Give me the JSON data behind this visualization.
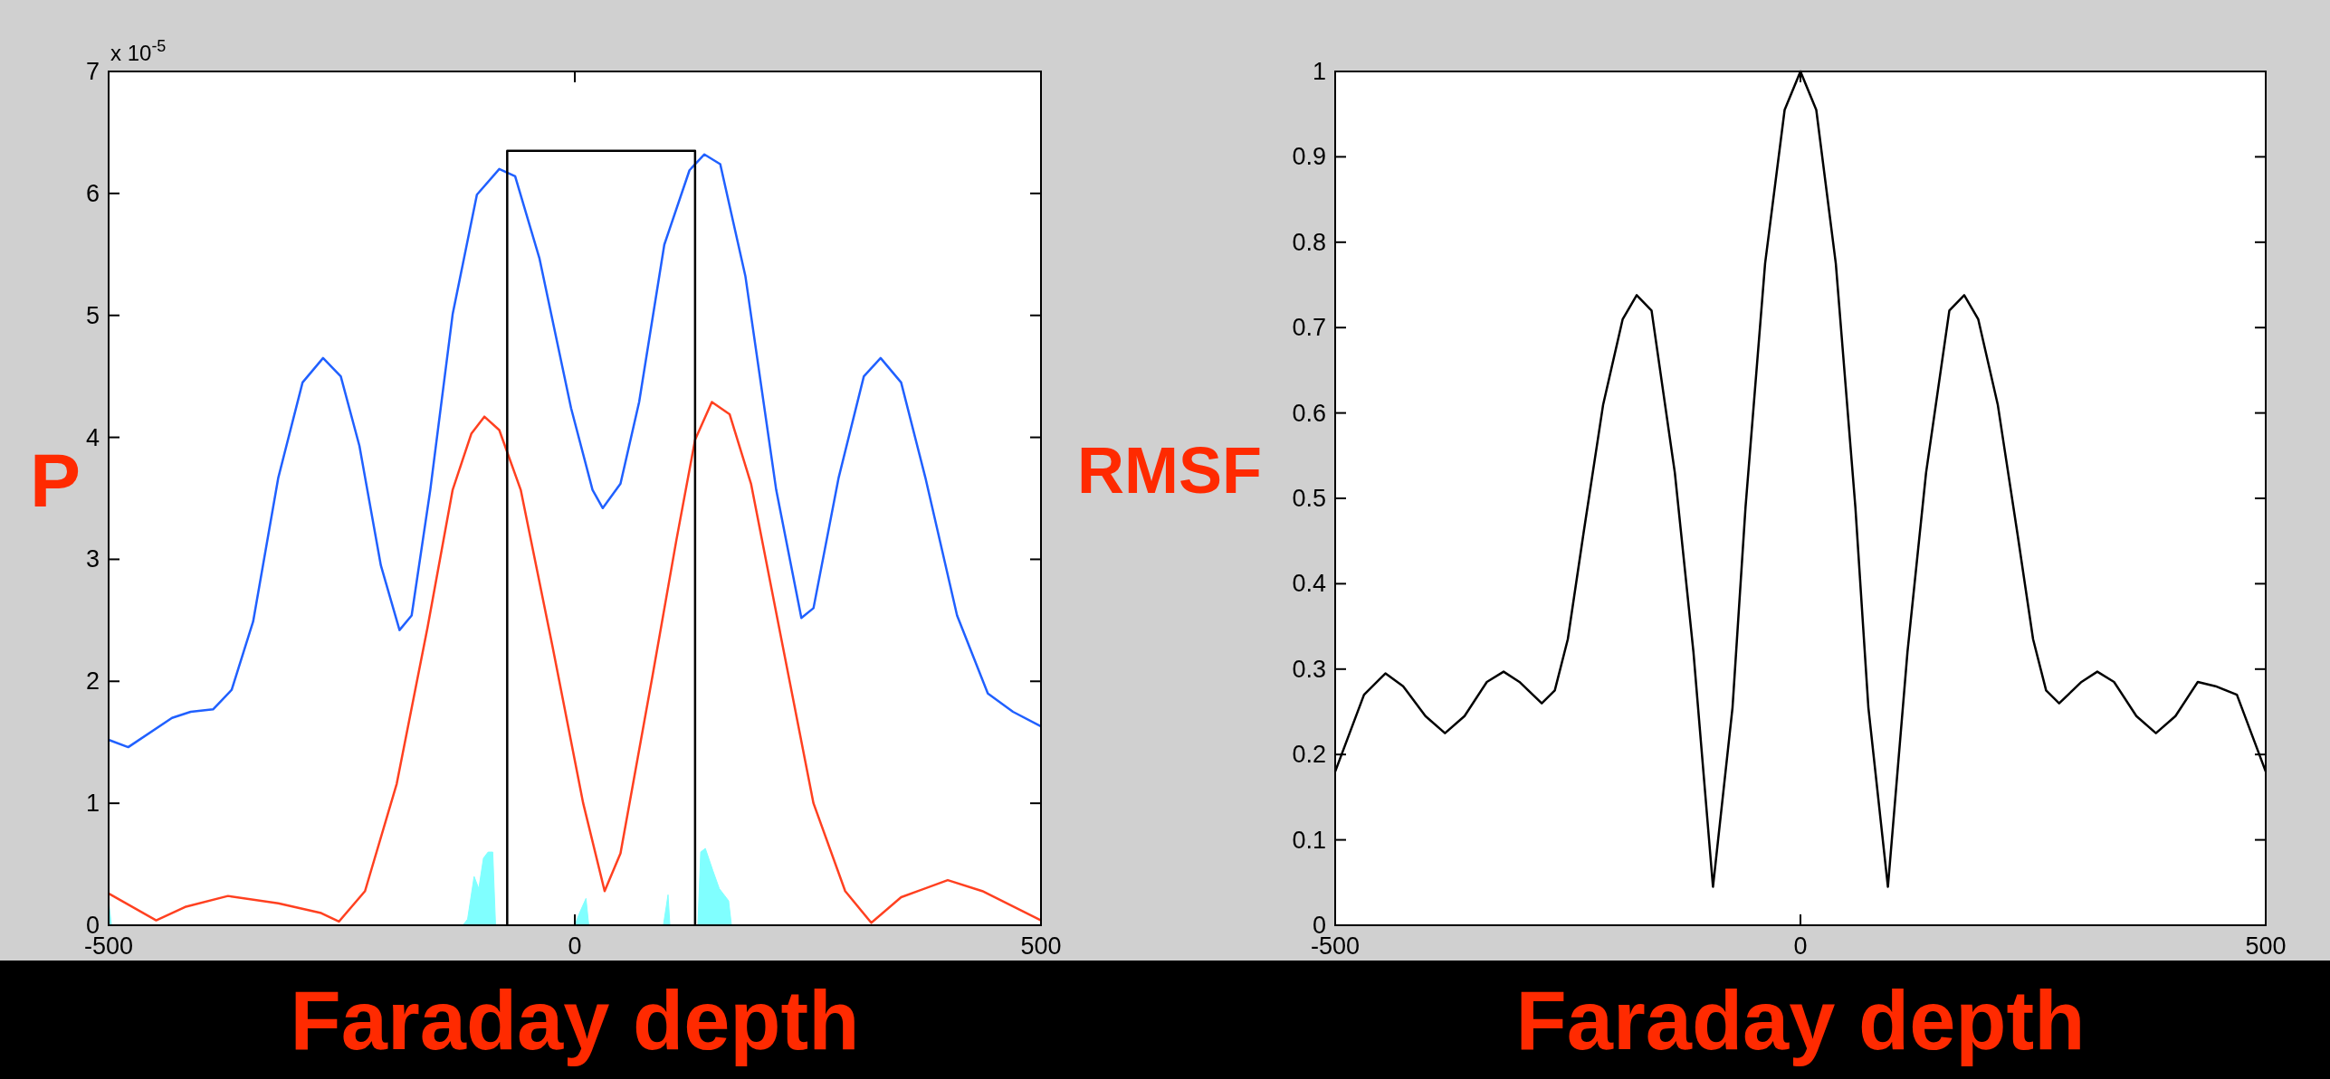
{
  "chart_data": [
    {
      "type": "line",
      "ylabel": "P",
      "xlabel": "Faraday depth",
      "annotations": [
        "x 10$^{-5}$"
      ],
      "xlim": [
        -500,
        500
      ],
      "xticks": [
        -500,
        0,
        500
      ],
      "ylim": [
        0,
        7
      ],
      "yticks": [
        0,
        1,
        2,
        3,
        4,
        5,
        6,
        7
      ],
      "grid": false,
      "series": [
        {
          "type": "area",
          "color": "#80ffff",
          "x": [
            -500,
            -497,
            -120,
            -115,
            -108,
            -103,
            -98,
            -93,
            -88,
            -85,
            0,
            5,
            12,
            15,
            95,
            100,
            102,
            132,
            135,
            140,
            148,
            155,
            165,
            168,
            500
          ],
          "values": [
            0.2,
            0,
            0,
            0.05,
            0.4,
            0.3,
            0.55,
            0.6,
            0.6,
            0,
            0,
            0.1,
            0.22,
            0,
            0,
            0.25,
            0,
            0,
            0.6,
            0.63,
            0.45,
            0.3,
            0.2,
            0,
            0
          ]
        },
        {
          "color": "#ff4020",
          "x": [
            -500,
            -449,
            -418,
            -372,
            -318,
            -272,
            -253,
            -225,
            -191,
            -158,
            -131,
            -111,
            -97,
            -81,
            -58,
            -24,
            9,
            32,
            49,
            83,
            109,
            129,
            147,
            166,
            189,
            223,
            256,
            290,
            318,
            350,
            400,
            437,
            500
          ],
          "values": [
            0.26,
            0.04,
            0.15,
            0.24,
            0.18,
            0.1,
            0.03,
            0.28,
            1.16,
            2.44,
            3.57,
            4.03,
            4.17,
            4.06,
            3.57,
            2.29,
            1.0,
            0.28,
            0.59,
            2.03,
            3.16,
            3.98,
            4.29,
            4.19,
            3.62,
            2.29,
            1.0,
            0.28,
            0.02,
            0.23,
            0.37,
            0.28,
            0.04
          ]
        },
        {
          "color": "#2060ff",
          "x": [
            -500,
            -479,
            -432,
            -412,
            -388,
            -368,
            -345,
            -318,
            -292,
            -270,
            -251,
            -231,
            -208,
            -188,
            -175,
            -155,
            -131,
            -105,
            -81,
            -64,
            -38,
            -4,
            19,
            30,
            49,
            69,
            96,
            123,
            139,
            156,
            183,
            216,
            243,
            256,
            283,
            310,
            328,
            350,
            376,
            410,
            443,
            470,
            500
          ],
          "values": [
            1.52,
            1.46,
            1.7,
            1.75,
            1.77,
            1.93,
            2.49,
            3.67,
            4.45,
            4.65,
            4.5,
            3.93,
            2.95,
            2.42,
            2.54,
            3.57,
            5.01,
            5.99,
            6.2,
            6.14,
            5.47,
            4.24,
            3.57,
            3.42,
            3.62,
            4.29,
            5.58,
            6.19,
            6.32,
            6.24,
            5.32,
            3.57,
            2.52,
            2.6,
            3.67,
            4.5,
            4.65,
            4.45,
            3.67,
            2.54,
            1.9,
            1.75,
            1.63
          ]
        },
        {
          "color": "#000000",
          "x": [
            -72.5,
            -72.5,
            129,
            129
          ],
          "values": [
            0,
            6.35,
            6.35,
            0
          ]
        }
      ]
    },
    {
      "type": "line",
      "ylabel": "RMSF",
      "xlabel": "Faraday depth",
      "xlim": [
        -500,
        500
      ],
      "xticks": [
        -500,
        0,
        500
      ],
      "ylim": [
        0,
        1
      ],
      "yticks": [
        0,
        0.1,
        0.2,
        0.3,
        0.4,
        0.5,
        0.6,
        0.7,
        0.8,
        0.9,
        1
      ],
      "grid": false,
      "series": [
        {
          "color": "#000000",
          "x": [
            -500,
            -469,
            -446,
            -427,
            -403,
            -382,
            -361,
            -337,
            -319,
            -302,
            -278,
            -264,
            -250,
            -233,
            -212,
            -191,
            -176,
            -160,
            -135,
            -115,
            -94,
            -73,
            -59,
            -38,
            -17,
            0,
            17,
            38,
            59,
            73,
            94,
            115,
            135,
            160,
            176,
            191,
            212,
            233,
            250,
            264,
            278,
            302,
            319,
            337,
            361,
            382,
            403,
            427,
            446,
            469,
            500
          ],
          "values": [
            0.18,
            0.27,
            0.295,
            0.28,
            0.245,
            0.225,
            0.245,
            0.285,
            0.297,
            0.285,
            0.26,
            0.275,
            0.335,
            0.46,
            0.61,
            0.71,
            0.738,
            0.72,
            0.53,
            0.32,
            0.045,
            0.255,
            0.49,
            0.775,
            0.955,
            1.0,
            0.955,
            0.775,
            0.49,
            0.255,
            0.045,
            0.32,
            0.53,
            0.72,
            0.738,
            0.71,
            0.61,
            0.46,
            0.335,
            0.275,
            0.26,
            0.285,
            0.297,
            0.285,
            0.245,
            0.225,
            0.245,
            0.285,
            0.28,
            0.27,
            0.18
          ]
        }
      ]
    }
  ]
}
